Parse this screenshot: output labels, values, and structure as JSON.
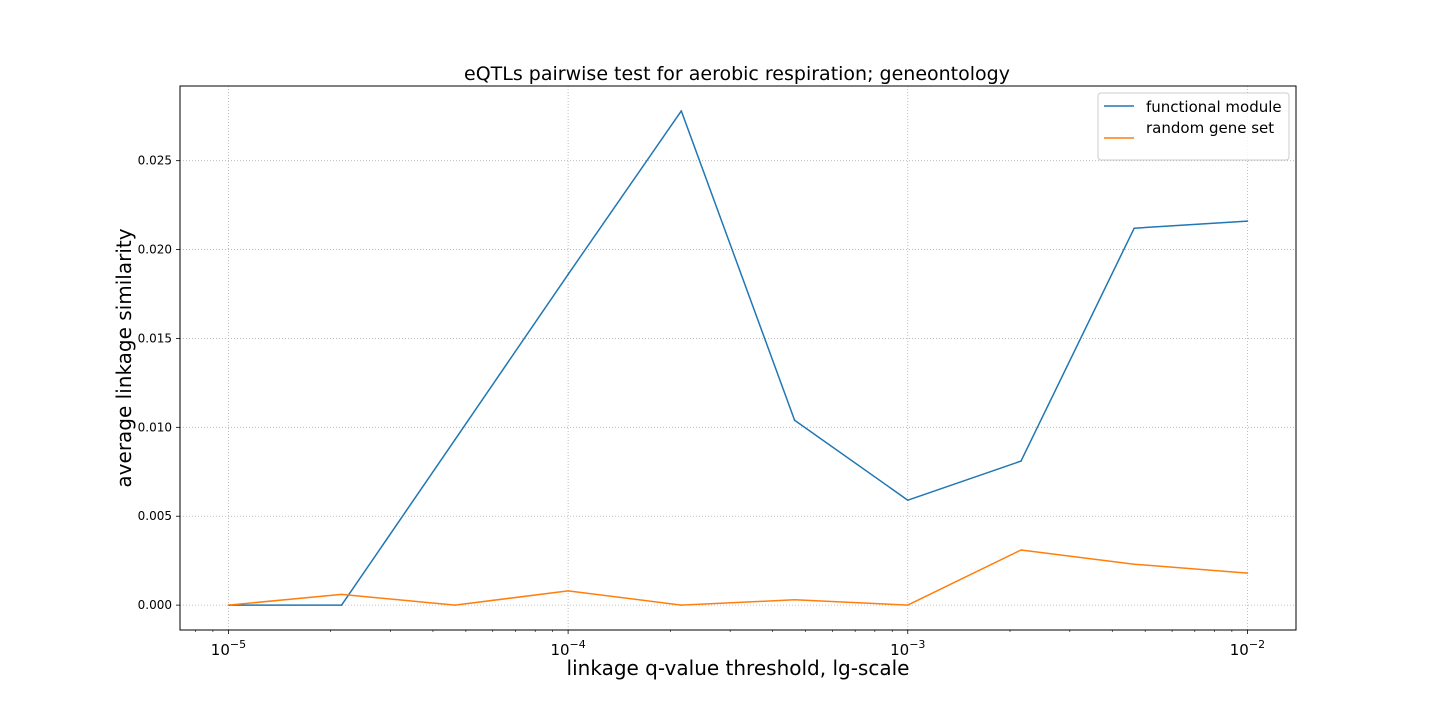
{
  "chart_data": {
    "type": "line",
    "title": "eQTLs pairwise test for aerobic respiration; geneontology",
    "xlabel": "linkage q-value threshold, lg-scale",
    "ylabel": "average linkage similarity",
    "xscale": "log",
    "xlim": [
      7.2e-06,
      0.0139
    ],
    "ylim": [
      -0.0014,
      0.0292
    ],
    "grid": true,
    "legend_position": "top-right",
    "x_ticks": [
      {
        "value": 1e-05,
        "base": "10",
        "exp": "−5"
      },
      {
        "value": 0.0001,
        "base": "10",
        "exp": "−4"
      },
      {
        "value": 0.001,
        "base": "10",
        "exp": "−3"
      },
      {
        "value": 0.01,
        "base": "10",
        "exp": "−2"
      }
    ],
    "y_ticks": [
      {
        "value": 0.0,
        "label": "0.000"
      },
      {
        "value": 0.005,
        "label": "0.005"
      },
      {
        "value": 0.01,
        "label": "0.010"
      },
      {
        "value": 0.015,
        "label": "0.015"
      },
      {
        "value": 0.02,
        "label": "0.020"
      },
      {
        "value": 0.025,
        "label": "0.025"
      }
    ],
    "x": [
      1e-05,
      2.154e-05,
      4.642e-05,
      0.0001,
      0.0002154,
      0.0004642,
      0.001,
      0.002154,
      0.004642,
      0.01
    ],
    "series": [
      {
        "name": "functional module",
        "color": "#1f77b4",
        "values": [
          0.0,
          0.0,
          0.0093,
          0.0186,
          0.0278,
          0.0104,
          0.0059,
          0.0081,
          0.0212,
          0.0216
        ]
      },
      {
        "name": "random gene set",
        "color": "#ff7f0e",
        "values": [
          0.0,
          0.0006,
          0.0,
          0.0008,
          0.0,
          0.0003,
          0.0,
          0.0031,
          0.0023,
          0.0018
        ]
      }
    ]
  }
}
